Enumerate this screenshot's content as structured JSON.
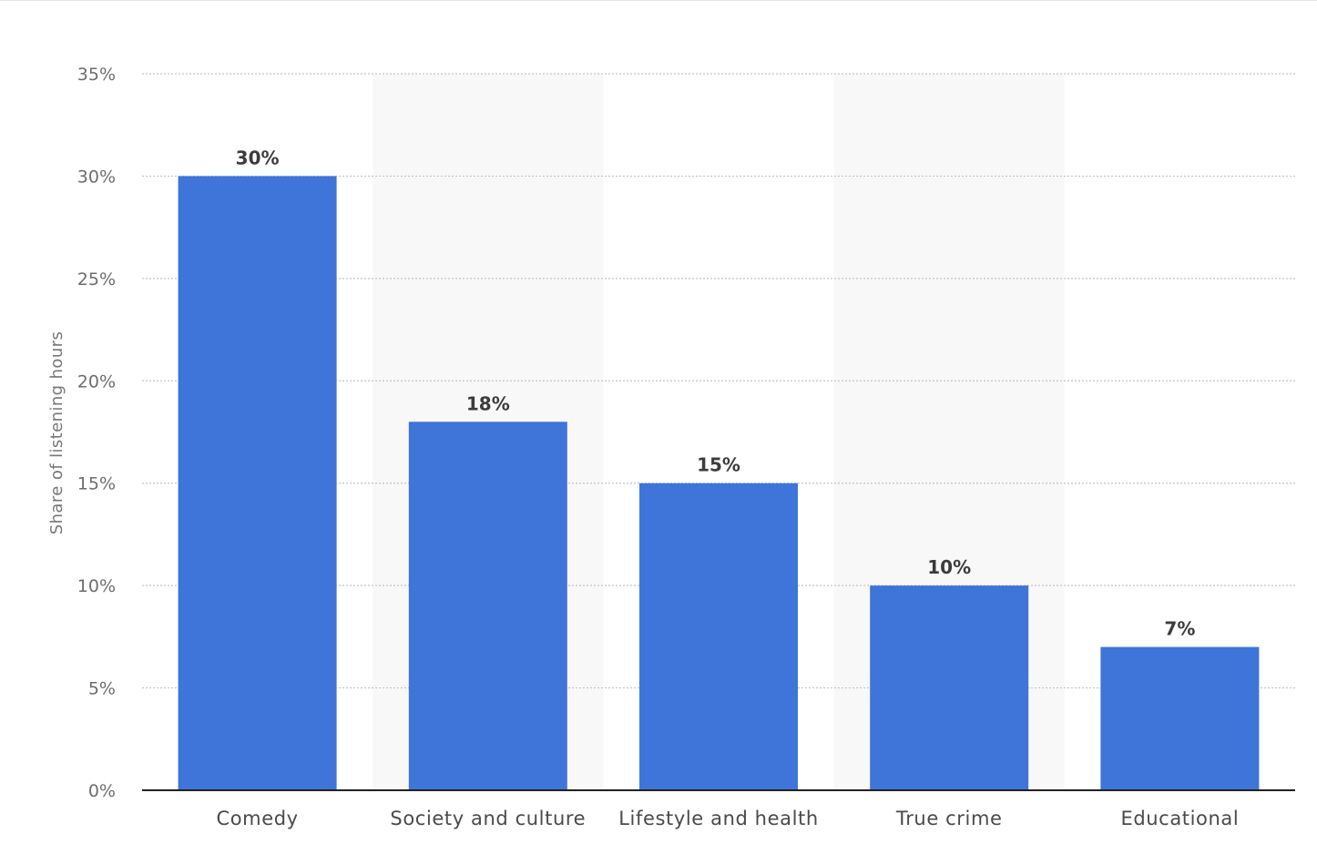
{
  "chart_data": {
    "type": "bar",
    "categories": [
      "Comedy",
      "Society and culture",
      "Lifestyle and health",
      "True crime",
      "Educational"
    ],
    "values": [
      30,
      18,
      15,
      10,
      7
    ],
    "value_labels": [
      "30%",
      "18%",
      "15%",
      "10%",
      "7%"
    ],
    "title": "",
    "xlabel": "",
    "ylabel": "Share of listening hours",
    "ylim": [
      0,
      35
    ],
    "yticks": [
      0,
      5,
      10,
      15,
      20,
      25,
      30,
      35
    ],
    "ytick_labels": [
      "0%",
      "5%",
      "10%",
      "15%",
      "20%",
      "25%",
      "30%",
      "35%"
    ],
    "grid": true,
    "grid_style": "dotted",
    "alternating_band_shading": true,
    "legend": "none",
    "colors": {
      "bar": "#3f74d8",
      "band": "#f8f8f8",
      "grid": "#c4c4c4",
      "axis": "#222222"
    }
  }
}
